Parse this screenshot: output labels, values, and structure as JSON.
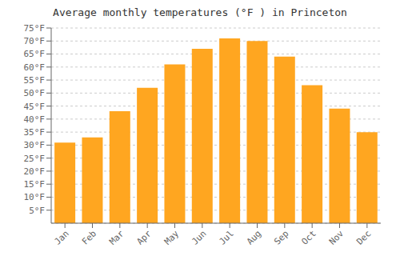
{
  "chart_data": {
    "type": "bar",
    "title": "Average monthly temperatures (°F ) in Princeton",
    "categories": [
      "Jan",
      "Feb",
      "Mar",
      "Apr",
      "May",
      "Jun",
      "Jul",
      "Aug",
      "Sep",
      "Oct",
      "Nov",
      "Dec"
    ],
    "values": [
      31,
      33,
      43,
      52,
      61,
      67,
      71,
      70,
      64,
      53,
      44,
      35
    ],
    "color": "#FFA620",
    "ylim": [
      0,
      75
    ],
    "yticks": [
      {
        "value": 5,
        "label": "5°F"
      },
      {
        "value": 10,
        "label": "10°F"
      },
      {
        "value": 15,
        "label": "15°F"
      },
      {
        "value": 20,
        "label": "20°F"
      },
      {
        "value": 25,
        "label": "25°F"
      },
      {
        "value": 30,
        "label": "30°F"
      },
      {
        "value": 35,
        "label": "35°F"
      },
      {
        "value": 40,
        "label": "40°F"
      },
      {
        "value": 45,
        "label": "45°F"
      },
      {
        "value": 50,
        "label": "50°F"
      },
      {
        "value": 55,
        "label": "55°F"
      },
      {
        "value": 60,
        "label": "60°F"
      },
      {
        "value": 65,
        "label": "65°F"
      },
      {
        "value": 70,
        "label": "70°F"
      },
      {
        "value": 75,
        "label": "75°F"
      }
    ],
    "grid": true
  }
}
